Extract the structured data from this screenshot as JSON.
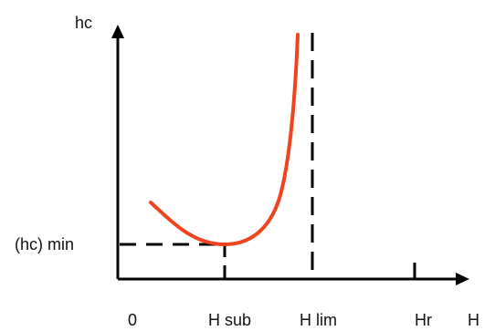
{
  "axes": {
    "y_label": "hc",
    "x_label": "H",
    "origin_label": "0"
  },
  "marks": {
    "hc_min_label": "(hc) min",
    "h_sub_label": "H sub",
    "h_lim_label": "H lim",
    "h_r_label": "Hr"
  },
  "colors": {
    "curve": "#f0441f",
    "axes": "#000000",
    "dashes": "#000000"
  }
}
